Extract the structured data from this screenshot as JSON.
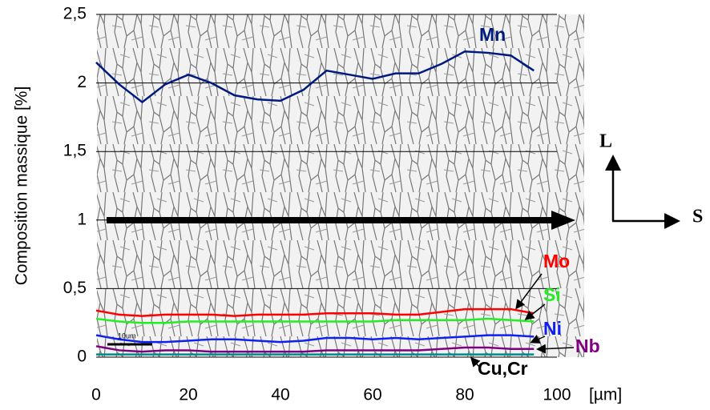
{
  "chart_data": {
    "type": "line",
    "y_label": "Composition massique [%]",
    "x_label": "[µm]",
    "annotations": [
      "L",
      "S",
      "10um"
    ],
    "x": [
      0,
      5,
      10,
      15,
      20,
      25,
      30,
      35,
      40,
      45,
      50,
      55,
      60,
      65,
      70,
      75,
      80,
      85,
      90,
      95
    ],
    "series": [
      {
        "name": "Mn",
        "color": "#001a80",
        "values": [
          2.15,
          1.99,
          1.86,
          1.99,
          2.06,
          2.0,
          1.91,
          1.88,
          1.87,
          1.95,
          2.09,
          2.06,
          2.03,
          2.07,
          2.07,
          2.14,
          2.23,
          2.22,
          2.2,
          2.09
        ]
      },
      {
        "name": "Mo",
        "color": "#ff0000",
        "values": [
          0.34,
          0.31,
          0.3,
          0.31,
          0.31,
          0.31,
          0.3,
          0.31,
          0.31,
          0.31,
          0.32,
          0.32,
          0.32,
          0.31,
          0.31,
          0.33,
          0.35,
          0.35,
          0.35,
          0.32
        ]
      },
      {
        "name": "Si",
        "color": "#22ee22",
        "values": [
          0.28,
          0.26,
          0.25,
          0.25,
          0.26,
          0.26,
          0.26,
          0.26,
          0.26,
          0.26,
          0.26,
          0.26,
          0.26,
          0.27,
          0.27,
          0.27,
          0.27,
          0.28,
          0.27,
          0.26
        ]
      },
      {
        "name": "Ni",
        "color": "#1020ee",
        "values": [
          0.16,
          0.13,
          0.11,
          0.11,
          0.12,
          0.13,
          0.13,
          0.12,
          0.11,
          0.12,
          0.14,
          0.14,
          0.13,
          0.14,
          0.13,
          0.14,
          0.15,
          0.16,
          0.16,
          0.15
        ]
      },
      {
        "name": "Nb",
        "color": "#800080",
        "values": [
          0.08,
          0.05,
          0.04,
          0.05,
          0.05,
          0.04,
          0.04,
          0.04,
          0.04,
          0.04,
          0.05,
          0.05,
          0.05,
          0.05,
          0.05,
          0.06,
          0.07,
          0.07,
          0.06,
          0.06
        ]
      },
      {
        "name": "Cu,Cr",
        "color": "#008b8b",
        "values": [
          0.02,
          0.02,
          0.02,
          0.02,
          0.02,
          0.02,
          0.02,
          0.02,
          0.02,
          0.02,
          0.02,
          0.02,
          0.02,
          0.02,
          0.02,
          0.02,
          0.02,
          0.02,
          0.02,
          0.02
        ]
      }
    ],
    "xlim": [
      0,
      100
    ],
    "xticks": [
      0,
      20,
      40,
      60,
      80,
      100
    ],
    "ylim": [
      0,
      2.5
    ],
    "yticks": [
      0,
      {
        "value": 0.5,
        "label": "0,5"
      },
      1,
      {
        "value": 1.5,
        "label": "1,5"
      },
      2,
      {
        "value": 2.5,
        "label": "2,5"
      }
    ],
    "grid": true
  }
}
